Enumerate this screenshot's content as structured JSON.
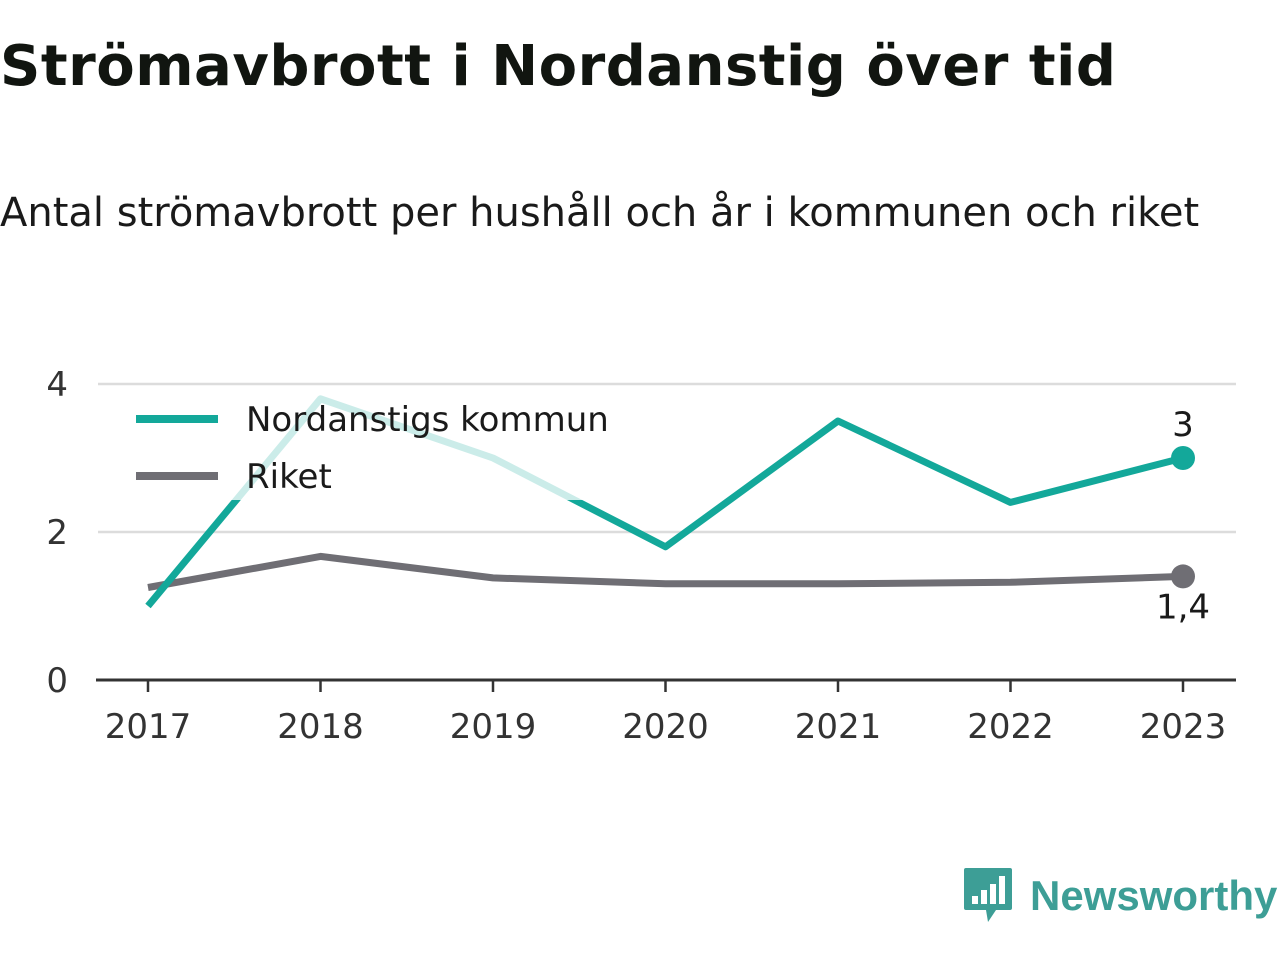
{
  "header": {
    "title": "Strömavbrott i Nordanstig över tid",
    "subtitle": "Antal strömavbrott per hushåll och år i kommunen och riket"
  },
  "brand": {
    "name": "Newsworthy",
    "color": "#3d9e96",
    "icon": "bar-chart-speech-bubble-icon"
  },
  "chart_data": {
    "type": "line",
    "title": "",
    "xlabel": "",
    "ylabel": "",
    "x": [
      "2017",
      "2018",
      "2019",
      "2020",
      "2021",
      "2022",
      "2023"
    ],
    "y_ticks": [
      0,
      2,
      4
    ],
    "ylim": [
      0,
      4
    ],
    "grid": true,
    "legend": "top-left",
    "series": [
      {
        "name": "Nordanstigs kommun",
        "color": "#13a89a",
        "values": [
          1.0,
          3.8,
          3.0,
          1.8,
          3.5,
          2.4,
          3.0
        ],
        "end_label": "3"
      },
      {
        "name": "Riket",
        "color": "#6f6e74",
        "values": [
          1.25,
          1.67,
          1.38,
          1.3,
          1.3,
          1.32,
          1.4
        ],
        "end_label": "1,4"
      }
    ]
  }
}
